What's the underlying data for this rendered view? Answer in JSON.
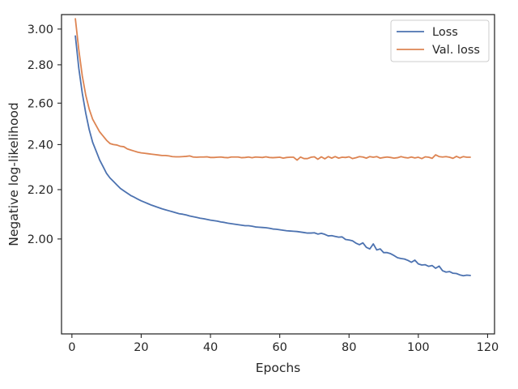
{
  "chart_data": {
    "type": "line",
    "xlabel": "Epochs",
    "ylabel": "Negative log-likelihood",
    "xlim": [
      -3,
      122
    ],
    "ylim": [
      1.665,
      3.085
    ],
    "y_scale": "log",
    "grid": false,
    "legend_position": "top-right",
    "xticks": [
      0,
      20,
      40,
      60,
      80,
      100,
      120
    ],
    "xtick_labels": [
      "0",
      "20",
      "40",
      "60",
      "80",
      "100",
      "120"
    ],
    "yticks": [
      2.0,
      2.2,
      2.4,
      2.6,
      2.8,
      3.0
    ],
    "ytick_labels": [
      "2.00",
      "2.20",
      "2.40",
      "2.60",
      "2.80",
      "3.00"
    ],
    "series": [
      {
        "name": "Loss",
        "color": "#4c72b0",
        "x": [
          1,
          2,
          3,
          4,
          5,
          6,
          7,
          8,
          9,
          10,
          11,
          12,
          13,
          14,
          15,
          16,
          17,
          18,
          19,
          20,
          21,
          22,
          23,
          24,
          25,
          26,
          27,
          28,
          29,
          30,
          31,
          32,
          33,
          34,
          35,
          36,
          37,
          38,
          39,
          40,
          41,
          42,
          43,
          44,
          45,
          46,
          47,
          48,
          49,
          50,
          51,
          52,
          53,
          54,
          55,
          56,
          57,
          58,
          59,
          60,
          61,
          62,
          63,
          64,
          65,
          66,
          67,
          68,
          69,
          70,
          71,
          72,
          73,
          74,
          75,
          76,
          77,
          78,
          79,
          80,
          81,
          82,
          83,
          84,
          85,
          86,
          87,
          88,
          89,
          90,
          91,
          92,
          93,
          94,
          95,
          96,
          97,
          98,
          99,
          100,
          101,
          102,
          103,
          104,
          105,
          106,
          107,
          108,
          109,
          110,
          111,
          112,
          113,
          114,
          115
        ],
        "y": [
          2.96,
          2.78,
          2.65,
          2.55,
          2.47,
          2.41,
          2.37,
          2.33,
          2.3,
          2.27,
          2.25,
          2.235,
          2.22,
          2.205,
          2.195,
          2.185,
          2.175,
          2.168,
          2.16,
          2.153,
          2.147,
          2.141,
          2.135,
          2.13,
          2.125,
          2.12,
          2.116,
          2.112,
          2.108,
          2.104,
          2.1,
          2.098,
          2.095,
          2.091,
          2.088,
          2.085,
          2.082,
          2.08,
          2.077,
          2.074,
          2.072,
          2.07,
          2.067,
          2.065,
          2.062,
          2.06,
          2.058,
          2.056,
          2.054,
          2.052,
          2.052,
          2.05,
          2.047,
          2.046,
          2.045,
          2.044,
          2.042,
          2.039,
          2.038,
          2.036,
          2.034,
          2.032,
          2.031,
          2.03,
          2.029,
          2.027,
          2.025,
          2.023,
          2.023,
          2.024,
          2.019,
          2.022,
          2.018,
          2.012,
          2.013,
          2.01,
          2.007,
          2.008,
          1.998,
          1.996,
          1.993,
          1.984,
          1.978,
          1.985,
          1.968,
          1.962,
          1.981,
          1.958,
          1.962,
          1.948,
          1.948,
          1.944,
          1.937,
          1.929,
          1.926,
          1.924,
          1.919,
          1.912,
          1.92,
          1.906,
          1.902,
          1.903,
          1.897,
          1.9,
          1.89,
          1.898,
          1.881,
          1.876,
          1.878,
          1.872,
          1.871,
          1.866,
          1.863,
          1.865,
          1.864
        ]
      },
      {
        "name": "Val. loss",
        "color": "#dd8452",
        "x": [
          1,
          2,
          3,
          4,
          5,
          6,
          7,
          8,
          9,
          10,
          11,
          12,
          13,
          14,
          15,
          16,
          17,
          18,
          19,
          20,
          21,
          22,
          23,
          24,
          25,
          26,
          27,
          28,
          29,
          30,
          31,
          32,
          33,
          34,
          35,
          36,
          37,
          38,
          39,
          40,
          41,
          42,
          43,
          44,
          45,
          46,
          47,
          48,
          49,
          50,
          51,
          52,
          53,
          54,
          55,
          56,
          57,
          58,
          59,
          60,
          61,
          62,
          63,
          64,
          65,
          66,
          67,
          68,
          69,
          70,
          71,
          72,
          73,
          74,
          75,
          76,
          77,
          78,
          79,
          80,
          81,
          82,
          83,
          84,
          85,
          86,
          87,
          88,
          89,
          90,
          91,
          92,
          93,
          94,
          95,
          96,
          97,
          98,
          99,
          100,
          101,
          102,
          103,
          104,
          105,
          106,
          107,
          108,
          109,
          110,
          111,
          112,
          113,
          114,
          115
        ],
        "y": [
          3.06,
          2.88,
          2.74,
          2.64,
          2.57,
          2.52,
          2.49,
          2.46,
          2.44,
          2.42,
          2.405,
          2.4,
          2.398,
          2.392,
          2.39,
          2.38,
          2.375,
          2.37,
          2.365,
          2.362,
          2.36,
          2.358,
          2.356,
          2.354,
          2.352,
          2.35,
          2.35,
          2.348,
          2.345,
          2.344,
          2.344,
          2.345,
          2.346,
          2.348,
          2.343,
          2.342,
          2.343,
          2.343,
          2.344,
          2.341,
          2.341,
          2.342,
          2.343,
          2.341,
          2.34,
          2.343,
          2.343,
          2.343,
          2.34,
          2.341,
          2.343,
          2.34,
          2.343,
          2.342,
          2.341,
          2.344,
          2.341,
          2.34,
          2.341,
          2.342,
          2.338,
          2.341,
          2.342,
          2.342,
          2.329,
          2.343,
          2.336,
          2.336,
          2.342,
          2.344,
          2.333,
          2.344,
          2.335,
          2.345,
          2.338,
          2.345,
          2.338,
          2.342,
          2.341,
          2.344,
          2.336,
          2.34,
          2.345,
          2.343,
          2.338,
          2.345,
          2.342,
          2.345,
          2.338,
          2.341,
          2.343,
          2.341,
          2.338,
          2.34,
          2.345,
          2.341,
          2.339,
          2.343,
          2.339,
          2.342,
          2.336,
          2.344,
          2.342,
          2.337,
          2.353,
          2.345,
          2.343,
          2.345,
          2.342,
          2.337,
          2.346,
          2.339,
          2.345,
          2.342,
          2.342
        ]
      }
    ]
  }
}
